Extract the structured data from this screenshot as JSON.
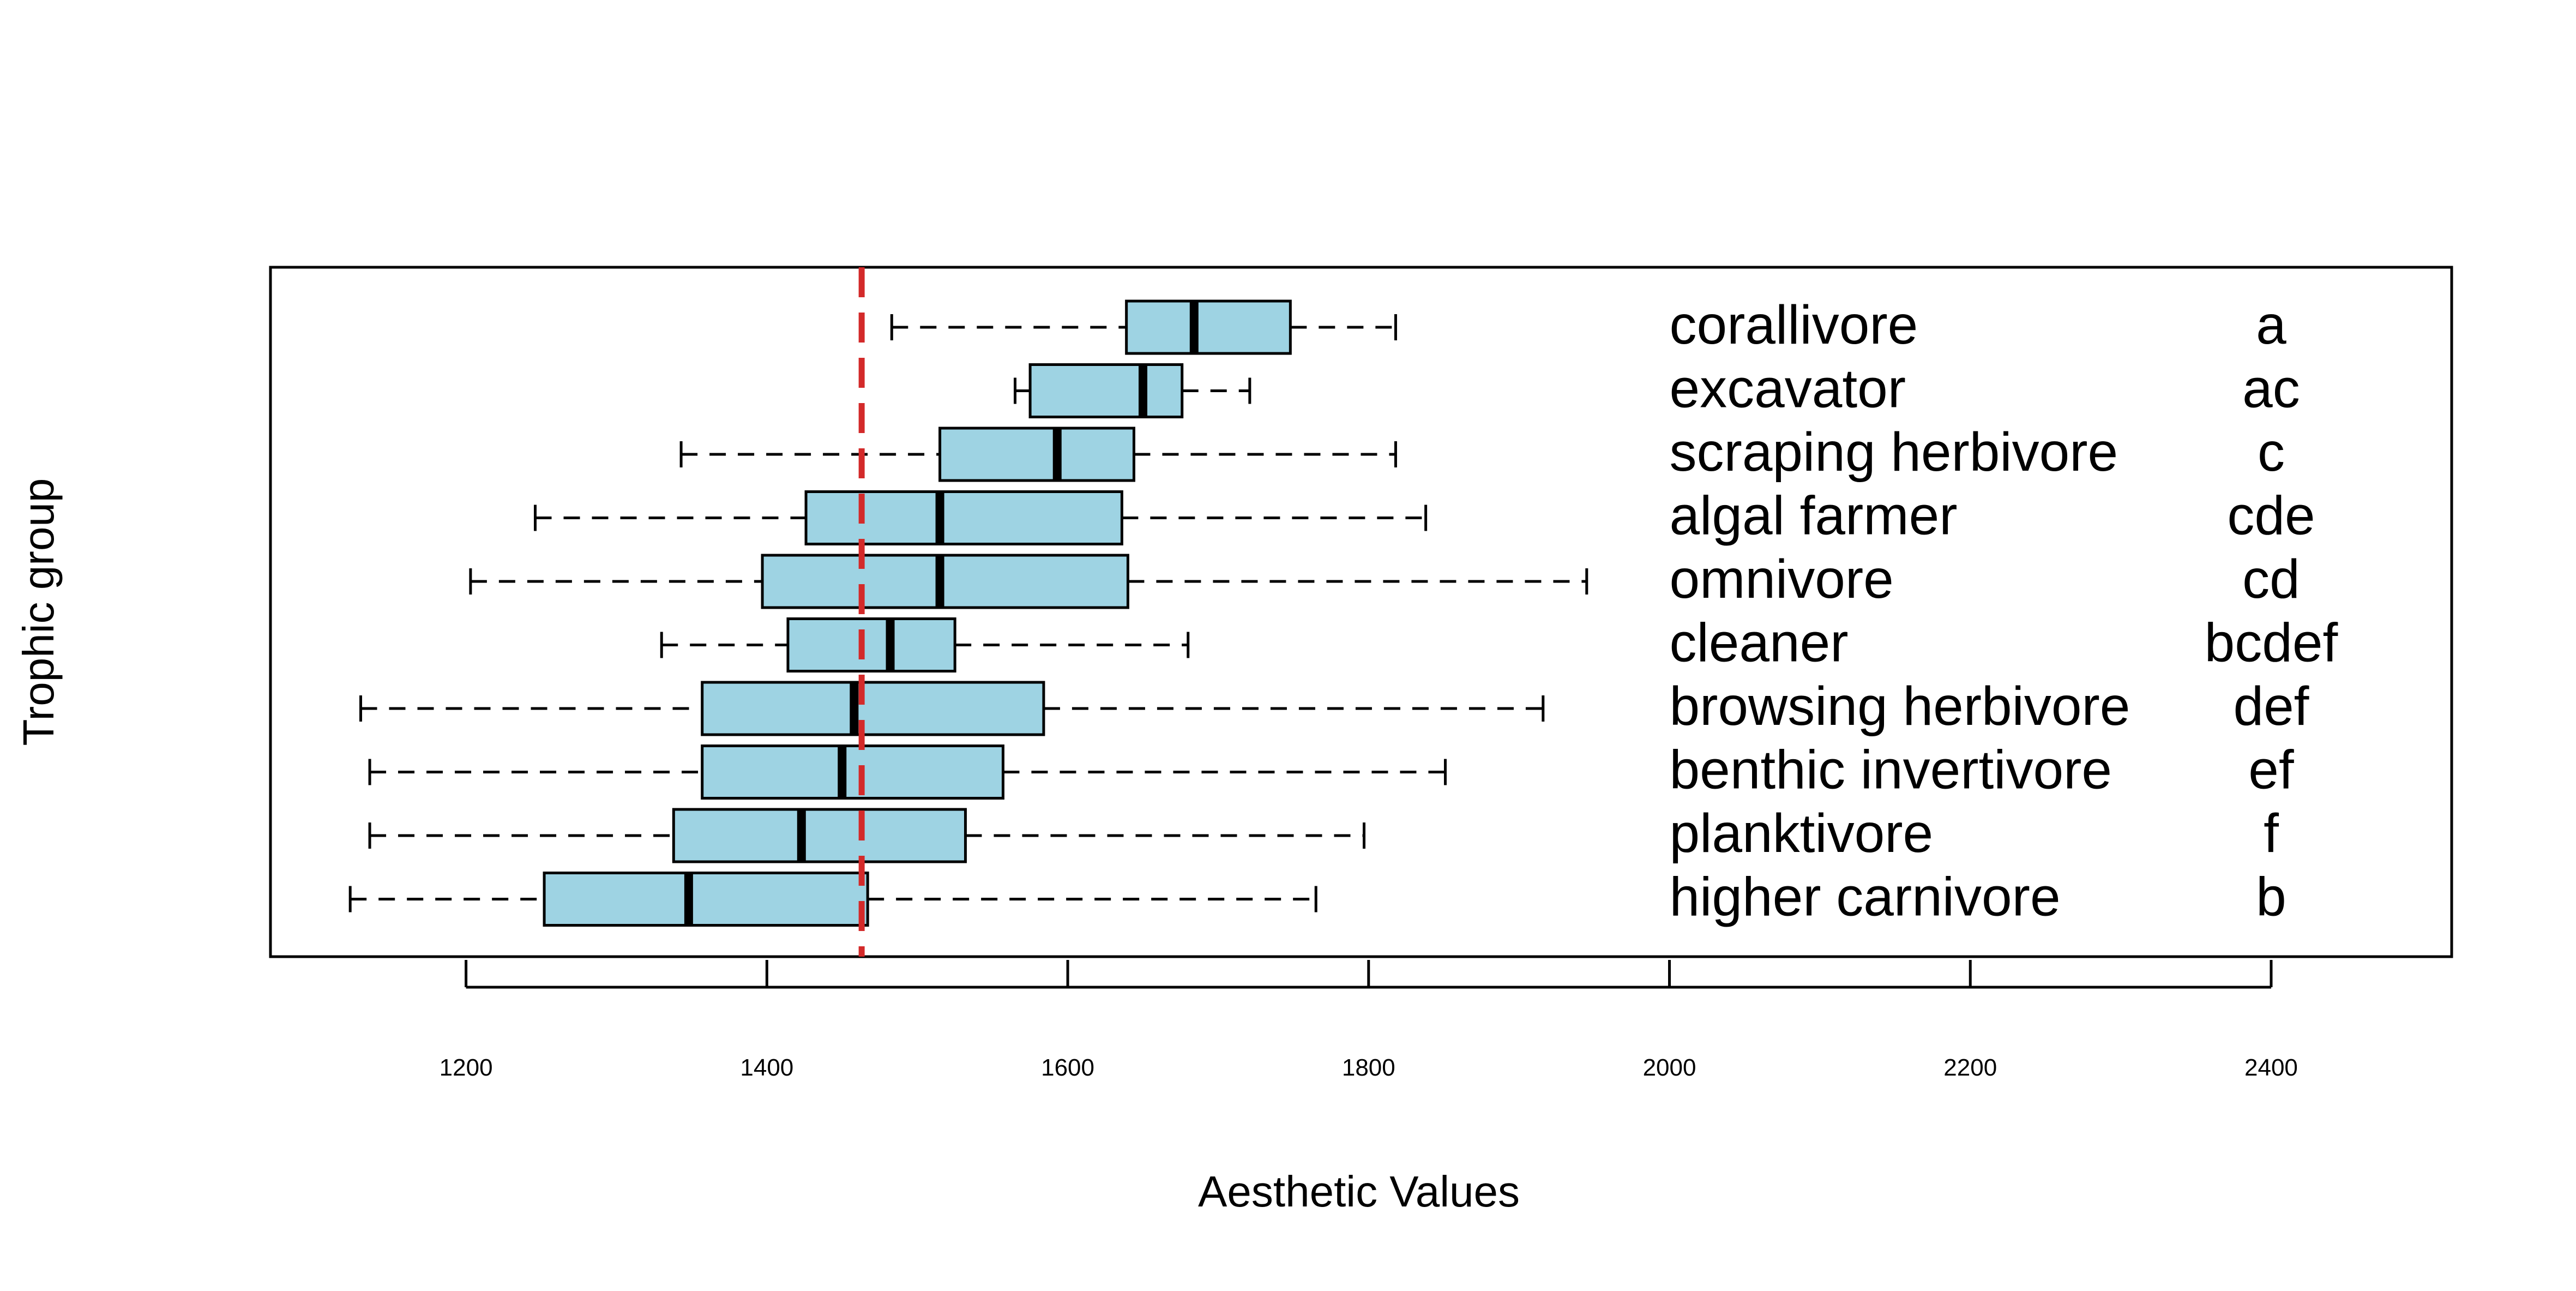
{
  "chart_data": {
    "type": "boxplot",
    "orientation": "horizontal",
    "title": "",
    "xlabel": "Aesthetic Values",
    "ylabel": "Trophic group",
    "xlim": [
      1070,
      2520
    ],
    "xticks": [
      1200,
      1400,
      1600,
      1800,
      2000,
      2200,
      2400
    ],
    "reference_line": {
      "value": 1463,
      "style": "dashed",
      "color": "#d32a2a"
    },
    "colors": {
      "box_fill": "#9ed3e3",
      "box_stroke": "#000000",
      "median": "#000000"
    },
    "label_x": 2000,
    "letter_x": 2400,
    "groups": [
      {
        "name": "corallivore",
        "letters": "a",
        "whisker_low": 1483,
        "q1": 1639,
        "median": 1684,
        "q3": 1748,
        "whisker_high": 1818
      },
      {
        "name": "excavator",
        "letters": "ac",
        "whisker_low": 1565,
        "q1": 1575,
        "median": 1650,
        "q3": 1676,
        "whisker_high": 1721
      },
      {
        "name": "scraping herbivore",
        "letters": "c",
        "whisker_low": 1343,
        "q1": 1515,
        "median": 1593,
        "q3": 1644,
        "whisker_high": 1818
      },
      {
        "name": "algal farmer",
        "letters": "cde",
        "whisker_low": 1246,
        "q1": 1426,
        "median": 1515,
        "q3": 1636,
        "whisker_high": 1838
      },
      {
        "name": "omnivore",
        "letters": "cd",
        "whisker_low": 1203,
        "q1": 1397,
        "median": 1515,
        "q3": 1640,
        "whisker_high": 1945
      },
      {
        "name": "cleaner",
        "letters": "bcdef",
        "whisker_low": 1330,
        "q1": 1414,
        "median": 1482,
        "q3": 1525,
        "whisker_high": 1680
      },
      {
        "name": "browsing herbivore",
        "letters": "def",
        "whisker_low": 1130,
        "q1": 1357,
        "median": 1458,
        "q3": 1584,
        "whisker_high": 1916
      },
      {
        "name": "benthic invertivore",
        "letters": "ef",
        "whisker_low": 1136,
        "q1": 1357,
        "median": 1450,
        "q3": 1557,
        "whisker_high": 1851
      },
      {
        "name": "planktivore",
        "letters": "f",
        "whisker_low": 1136,
        "q1": 1338,
        "median": 1423,
        "q3": 1532,
        "whisker_high": 1797
      },
      {
        "name": "higher carnivore",
        "letters": "b",
        "whisker_low": 1123,
        "q1": 1252,
        "median": 1348,
        "q3": 1467,
        "whisker_high": 1765
      }
    ]
  }
}
